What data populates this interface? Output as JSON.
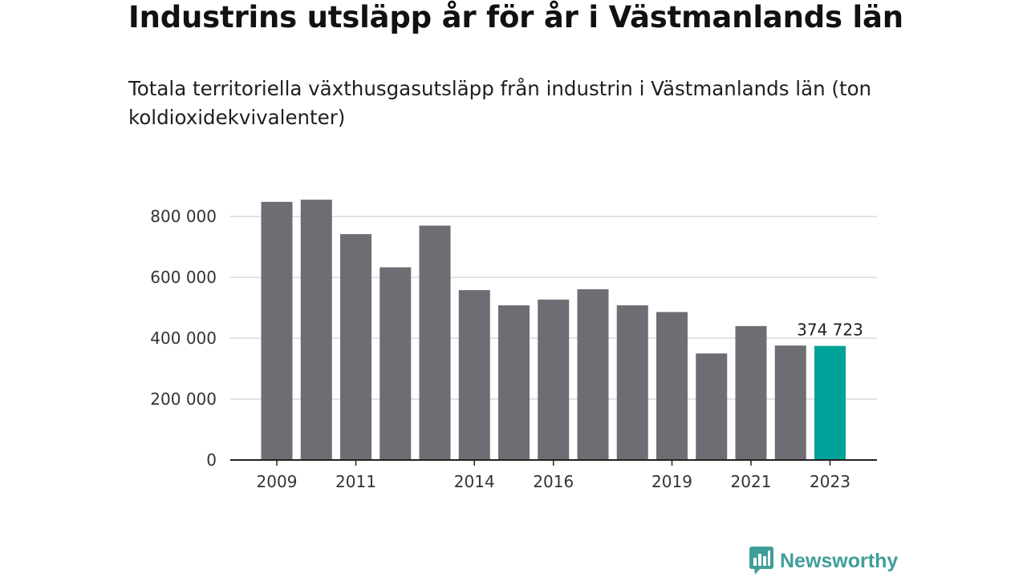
{
  "header": {
    "title": "Industrins utsläpp år för år i Västmanlands län",
    "subtitle": "Totala territoriella växthusgasutsläpp från industrin i Västmanlands län (ton koldioxidekvivalenter)"
  },
  "footer": {
    "logo_text": "Newsworthy"
  },
  "colors": {
    "bar": "#6e6d73",
    "highlight": "#00a29a",
    "grid": "#d9d9d9",
    "axis": "#222222",
    "logo": "#3f9e99"
  },
  "chart_data": {
    "type": "bar",
    "categories": [
      "2009",
      "2010",
      "2011",
      "2012",
      "2013",
      "2014",
      "2015",
      "2016",
      "2017",
      "2018",
      "2019",
      "2020",
      "2021",
      "2022",
      "2023"
    ],
    "values": [
      848000,
      855000,
      742000,
      633000,
      770000,
      558000,
      508000,
      527000,
      561000,
      508000,
      486000,
      350000,
      440000,
      376000,
      374723
    ],
    "highlight_index": 14,
    "xticks": [
      "2009",
      "2011",
      "2014",
      "2016",
      "2019",
      "2021",
      "2023"
    ],
    "yticks": [
      0,
      200000,
      400000,
      600000,
      800000
    ],
    "ytick_labels": [
      "0",
      "200 000",
      "400 000",
      "600 000",
      "800 000"
    ],
    "ylim": [
      0,
      900000
    ],
    "data_labels": [
      {
        "index": 14,
        "text": "374 723"
      }
    ],
    "grid": true,
    "legend": false
  }
}
